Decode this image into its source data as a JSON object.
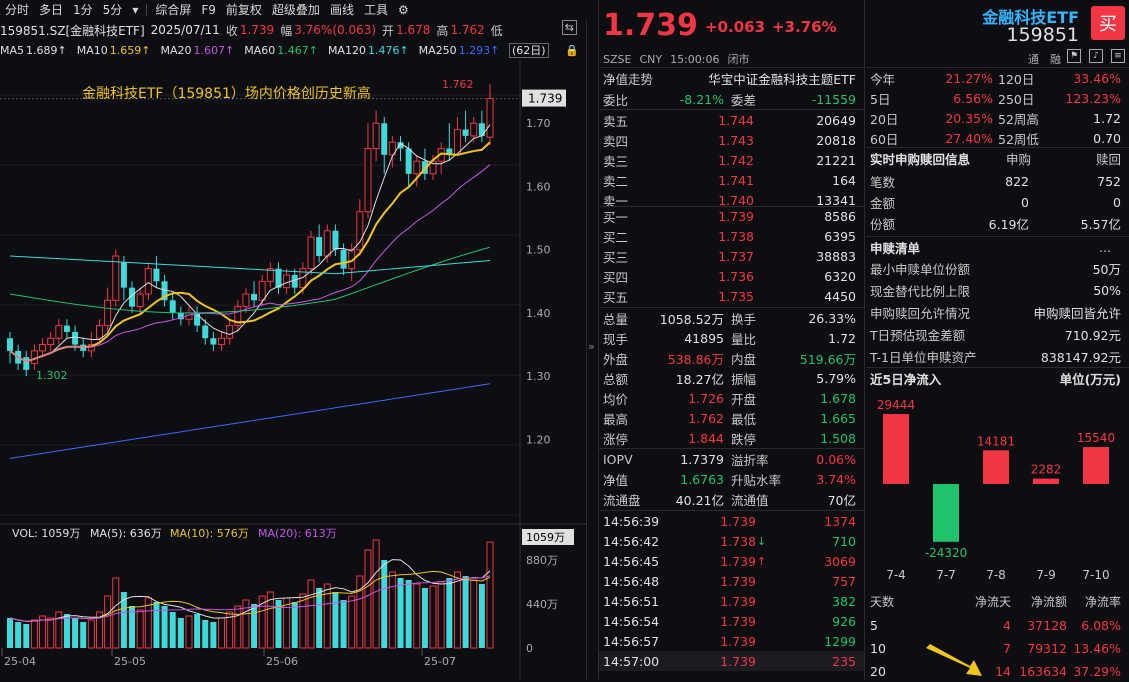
{
  "toolbar": {
    "items": [
      "分时",
      "多日",
      "1分",
      "5分",
      "▾",
      "综合屏",
      "F9",
      "前复权",
      "超级叠加",
      "画线",
      "工具"
    ],
    "gear": "⚙",
    "extra": "⇆"
  },
  "symbol": {
    "code": "159851.SZ[金融科技ETF]",
    "date": "2025/07/11",
    "close_label": "收",
    "close": "1.739",
    "range_label": "幅",
    "range": "3.76%(0.063)",
    "open_label": "开",
    "open": "1.678",
    "high_label": "高",
    "high": "1.762",
    "low_label": "低"
  },
  "ma_legend": [
    {
      "label": "MA5",
      "value": "1.689↑",
      "color": "#e0e0e0"
    },
    {
      "label": "MA10",
      "value": "1.659↑",
      "color": "#f0c419"
    },
    {
      "label": "MA20",
      "value": "1.607↑",
      "color": "#c855e6"
    },
    {
      "label": "MA60",
      "value": "1.467↑",
      "color": "#1fc36c"
    },
    {
      "label": "MA120",
      "value": "1.476↑",
      "color": "#3ed9d9"
    },
    {
      "label": "MA250",
      "value": "1.293↑",
      "color": "#3a6bff"
    }
  ],
  "ma_days": "(62日)",
  "annotation": "金融科技ETF（159851）场内价格创历史新高",
  "chart_data": {
    "type": "candlestick",
    "yaxis_ticks": [
      "1.70",
      "1.60",
      "1.50",
      "1.40",
      "1.30",
      "1.20"
    ],
    "ylim": [
      1.12,
      1.8
    ],
    "current_price": "1.739",
    "high_marker": "1.762",
    "low_marker": "1.302",
    "x_ticks": [
      "25-04",
      "25-05",
      "25-06",
      "25-07"
    ],
    "volume_legend": {
      "vol": "VOL: 1059万",
      "ma5": "MA(5): 636万",
      "ma10": "MA(10): 576万",
      "ma20": "MA(20): 613万"
    },
    "volume_ticks": [
      "880万",
      "440万",
      "0"
    ],
    "volume_current": "1059万",
    "volume_max": 1100,
    "candles": [
      [
        1.36,
        1.34,
        1.37,
        1.32
      ],
      [
        1.34,
        1.32,
        1.35,
        1.31
      ],
      [
        1.33,
        1.31,
        1.34,
        1.3
      ],
      [
        1.32,
        1.34,
        1.35,
        1.31
      ],
      [
        1.34,
        1.35,
        1.36,
        1.33
      ],
      [
        1.35,
        1.36,
        1.37,
        1.34
      ],
      [
        1.36,
        1.38,
        1.39,
        1.35
      ],
      [
        1.38,
        1.37,
        1.39,
        1.36
      ],
      [
        1.37,
        1.35,
        1.38,
        1.34
      ],
      [
        1.35,
        1.34,
        1.36,
        1.33
      ],
      [
        1.34,
        1.35,
        1.37,
        1.33
      ],
      [
        1.36,
        1.38,
        1.39,
        1.35
      ],
      [
        1.38,
        1.42,
        1.44,
        1.37
      ],
      [
        1.42,
        1.49,
        1.5,
        1.41
      ],
      [
        1.48,
        1.44,
        1.49,
        1.42
      ],
      [
        1.44,
        1.41,
        1.45,
        1.4
      ],
      [
        1.41,
        1.43,
        1.44,
        1.4
      ],
      [
        1.43,
        1.47,
        1.48,
        1.42
      ],
      [
        1.47,
        1.45,
        1.49,
        1.44
      ],
      [
        1.45,
        1.42,
        1.46,
        1.41
      ],
      [
        1.42,
        1.4,
        1.43,
        1.39
      ],
      [
        1.4,
        1.39,
        1.41,
        1.38
      ],
      [
        1.39,
        1.4,
        1.41,
        1.38
      ],
      [
        1.4,
        1.38,
        1.41,
        1.37
      ],
      [
        1.38,
        1.36,
        1.39,
        1.35
      ],
      [
        1.36,
        1.35,
        1.37,
        1.34
      ],
      [
        1.35,
        1.36,
        1.37,
        1.34
      ],
      [
        1.36,
        1.38,
        1.39,
        1.35
      ],
      [
        1.38,
        1.41,
        1.42,
        1.37
      ],
      [
        1.41,
        1.43,
        1.44,
        1.4
      ],
      [
        1.43,
        1.42,
        1.45,
        1.41
      ],
      [
        1.42,
        1.45,
        1.46,
        1.41
      ],
      [
        1.45,
        1.47,
        1.48,
        1.44
      ],
      [
        1.47,
        1.44,
        1.48,
        1.43
      ],
      [
        1.44,
        1.46,
        1.47,
        1.43
      ],
      [
        1.46,
        1.44,
        1.47,
        1.43
      ],
      [
        1.44,
        1.47,
        1.48,
        1.43
      ],
      [
        1.47,
        1.52,
        1.53,
        1.46
      ],
      [
        1.52,
        1.49,
        1.54,
        1.48
      ],
      [
        1.49,
        1.53,
        1.54,
        1.48
      ],
      [
        1.53,
        1.5,
        1.54,
        1.49
      ],
      [
        1.5,
        1.47,
        1.51,
        1.46
      ],
      [
        1.47,
        1.5,
        1.51,
        1.45
      ],
      [
        1.5,
        1.56,
        1.58,
        1.49
      ],
      [
        1.56,
        1.66,
        1.7,
        1.55
      ],
      [
        1.66,
        1.7,
        1.72,
        1.64
      ],
      [
        1.7,
        1.65,
        1.71,
        1.62
      ],
      [
        1.65,
        1.67,
        1.68,
        1.63
      ],
      [
        1.67,
        1.66,
        1.68,
        1.64
      ],
      [
        1.66,
        1.62,
        1.67,
        1.6
      ],
      [
        1.62,
        1.64,
        1.65,
        1.6
      ],
      [
        1.64,
        1.62,
        1.66,
        1.61
      ],
      [
        1.62,
        1.64,
        1.65,
        1.61
      ],
      [
        1.64,
        1.66,
        1.67,
        1.62
      ],
      [
        1.66,
        1.65,
        1.7,
        1.64
      ],
      [
        1.65,
        1.69,
        1.71,
        1.65
      ],
      [
        1.69,
        1.68,
        1.72,
        1.67
      ],
      [
        1.68,
        1.7,
        1.71,
        1.67
      ],
      [
        1.7,
        1.68,
        1.72,
        1.67
      ],
      [
        1.678,
        1.739,
        1.762,
        1.665
      ]
    ],
    "volumes": [
      300,
      260,
      240,
      280,
      320,
      300,
      360,
      340,
      300,
      260,
      280,
      360,
      520,
      700,
      560,
      420,
      380,
      500,
      460,
      420,
      360,
      300,
      320,
      340,
      280,
      260,
      300,
      360,
      420,
      480,
      440,
      520,
      560,
      480,
      500,
      460,
      540,
      680,
      600,
      640,
      560,
      480,
      520,
      720,
      980,
      1080,
      880,
      760,
      700,
      680,
      640,
      600,
      620,
      660,
      700,
      760,
      720,
      680,
      640,
      1059
    ]
  },
  "quote": {
    "price": "1.739",
    "change": "+0.063",
    "pct": "+3.76%",
    "exchange": "SZSE",
    "currency": "CNY",
    "time": "15:00:06",
    "status": "闭市",
    "name": "金融科技ETF",
    "code": "159851",
    "buy_label": "买"
  },
  "nav_trend": {
    "label": "净值走势",
    "index": "华宝中证金融科技主题ETF"
  },
  "bid_ratio": {
    "wb_label": "委比",
    "wb": "-8.21%",
    "wc_label": "委差",
    "wc": "-11559"
  },
  "asks": [
    {
      "label": "卖五",
      "price": "1.744",
      "vol": "20649"
    },
    {
      "label": "卖四",
      "price": "1.743",
      "vol": "20818"
    },
    {
      "label": "卖三",
      "price": "1.742",
      "vol": "21221"
    },
    {
      "label": "卖二",
      "price": "1.741",
      "vol": "164"
    },
    {
      "label": "卖一",
      "price": "1.740",
      "vol": "13341"
    }
  ],
  "bids": [
    {
      "label": "买一",
      "price": "1.739",
      "vol": "8586"
    },
    {
      "label": "买二",
      "price": "1.738",
      "vol": "6395"
    },
    {
      "label": "买三",
      "price": "1.737",
      "vol": "38883"
    },
    {
      "label": "买四",
      "price": "1.736",
      "vol": "6320"
    },
    {
      "label": "买五",
      "price": "1.735",
      "vol": "4450"
    }
  ],
  "stats": [
    {
      "l1": "总量",
      "v1": "1058.52万",
      "c1": "wh",
      "l2": "换手",
      "v2": "26.33%",
      "c2": "wh"
    },
    {
      "l1": "现手",
      "v1": "41895",
      "c1": "wh",
      "l2": "量比",
      "v2": "1.72",
      "c2": "wh"
    },
    {
      "l1": "外盘",
      "v1": "538.86万",
      "c1": "up",
      "l2": "内盘",
      "v2": "519.66万",
      "c2": "dn"
    },
    {
      "l1": "总额",
      "v1": "18.27亿",
      "c1": "wh",
      "l2": "振幅",
      "v2": "5.79%",
      "c2": "wh"
    },
    {
      "l1": "均价",
      "v1": "1.726",
      "c1": "up",
      "l2": "开盘",
      "v2": "1.678",
      "c2": "dn"
    },
    {
      "l1": "最高",
      "v1": "1.762",
      "c1": "up",
      "l2": "最低",
      "v2": "1.665",
      "c2": "dn"
    },
    {
      "l1": "涨停",
      "v1": "1.844",
      "c1": "up",
      "l2": "跌停",
      "v2": "1.508",
      "c2": "dn"
    }
  ],
  "iopv": [
    {
      "l1": "IOPV",
      "v1": "1.7379",
      "c1": "wh",
      "l2": "溢折率",
      "v2": "0.06%",
      "c2": "up"
    },
    {
      "l1": "净值",
      "v1": "1.6763",
      "c1": "dn",
      "l2": "升贴水率",
      "v2": "3.74%",
      "c2": "up"
    },
    {
      "l1": "流通盘",
      "v1": "40.21亿",
      "c1": "wh",
      "l2": "流通值",
      "v2": "70亿",
      "c2": "wh"
    }
  ],
  "ticks": [
    {
      "t": "14:56:39",
      "p": "1.739",
      "a": "",
      "v": "1374",
      "vc": "up"
    },
    {
      "t": "14:56:42",
      "p": "1.738",
      "a": "↓",
      "v": "710",
      "vc": "dn"
    },
    {
      "t": "14:56:45",
      "p": "1.739",
      "a": "↑",
      "v": "3069",
      "vc": "up"
    },
    {
      "t": "14:56:48",
      "p": "1.739",
      "a": "",
      "v": "757",
      "vc": "up"
    },
    {
      "t": "14:56:51",
      "p": "1.739",
      "a": "",
      "v": "382",
      "vc": "dn"
    },
    {
      "t": "14:56:54",
      "p": "1.739",
      "a": "",
      "v": "926",
      "vc": "dn"
    },
    {
      "t": "14:56:57",
      "p": "1.739",
      "a": "",
      "v": "1299",
      "vc": "dn"
    },
    {
      "t": "14:57:00",
      "p": "1.739",
      "a": "",
      "v": "235",
      "vc": "up"
    }
  ],
  "perf": [
    {
      "l1": "今年",
      "v1": "21.27%",
      "l2": "120日",
      "v2": "33.46%"
    },
    {
      "l1": "5日",
      "v1": "6.56%",
      "l2": "250日",
      "v2": "123.23%"
    },
    {
      "l1": "20日",
      "v1": "20.35%",
      "l2": "52周高",
      "v2": "1.72"
    },
    {
      "l1": "60日",
      "v1": "27.40%",
      "l2": "52周低",
      "v2": "0.70"
    }
  ],
  "subscription": {
    "title": "实时申购赎回信息",
    "h1": "申购",
    "h2": "赎回",
    "rows": [
      {
        "l": "笔数",
        "a": "822",
        "b": "752"
      },
      {
        "l": "金额",
        "a": "0",
        "b": "0"
      },
      {
        "l": "份额",
        "a": "6.19亿",
        "b": "5.57亿"
      }
    ]
  },
  "redeem_list": {
    "title": "申赎清单",
    "more": "...",
    "rows": [
      {
        "l": "最小申赎单位份额",
        "v": "50万"
      },
      {
        "l": "现金替代比例上限",
        "v": "50%"
      },
      {
        "l": "申购赎回允许情况",
        "v": "申购赎回皆允许"
      },
      {
        "l": "T日预估现金差额",
        "v": "710.92元"
      },
      {
        "l": "T-1日单位申赎资产",
        "v": "838147.92元"
      }
    ]
  },
  "flow": {
    "title": "近5日净流入",
    "unit": "单位(万元)",
    "bars": [
      {
        "d": "7-4",
        "v": 29444
      },
      {
        "d": "7-7",
        "v": -24320
      },
      {
        "d": "7-8",
        "v": 14181
      },
      {
        "d": "7-9",
        "v": 2282
      },
      {
        "d": "7-10",
        "v": 15540
      }
    ],
    "labels": [
      "29444",
      "-24320",
      "14181",
      "2282",
      "15540"
    ],
    "table_head": [
      "天数",
      "净流天",
      "净流额",
      "净流率"
    ],
    "table": [
      {
        "d": "5",
        "n": "4",
        "a": "37128",
        "r": "6.08%"
      },
      {
        "d": "10",
        "n": "7",
        "a": "79312",
        "r": "13.46%"
      },
      {
        "d": "20",
        "n": "14",
        "a": "163634",
        "r": "37.29%"
      }
    ]
  },
  "top_icons": {
    "tong": "通",
    "ke": "融"
  }
}
